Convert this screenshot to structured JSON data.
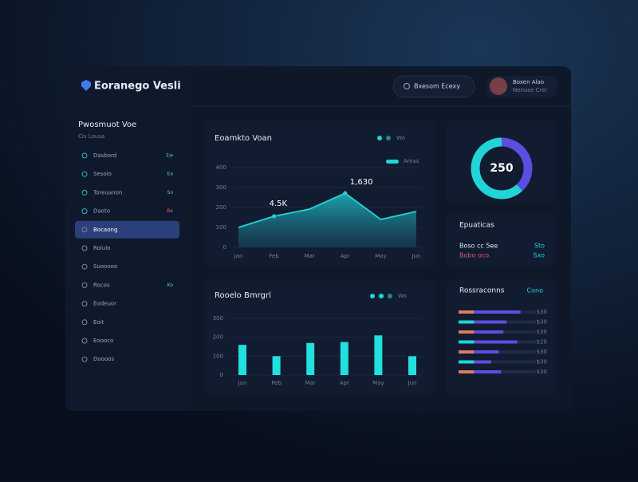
{
  "header": {
    "brand": "Eoranego Vesli",
    "search": "Bxesom Ecexy",
    "user_name": "Boxen Alao",
    "user_role": "Nenuse Crer"
  },
  "sidebar": {
    "title": "Pwosmuot Voe",
    "subtitle": "Cis Lousa",
    "active": 4,
    "items": [
      {
        "label": "Dasbord",
        "badge": "Ew"
      },
      {
        "label": "Sesolo",
        "badge": "Ea"
      },
      {
        "label": "Toreuanon",
        "badge": "So"
      },
      {
        "label": "Daoto",
        "badge": "Be"
      },
      {
        "label": "Bocaong"
      },
      {
        "label": "Rolulo"
      },
      {
        "label": "Suoooeo"
      },
      {
        "label": "Rocos",
        "badge": "Ko"
      },
      {
        "label": "Eodeuor"
      },
      {
        "label": "Eoit"
      },
      {
        "label": "Eoooco"
      },
      {
        "label": "Doooos"
      }
    ]
  },
  "line_card": {
    "title": "Eoamkto Voan",
    "toggle": "Amxs",
    "legend": "Wo",
    "chart_data": {
      "type": "line",
      "categories": [
        "Jan",
        "Feb",
        "Mar",
        "Apr",
        "May",
        "Jun"
      ],
      "values": [
        100,
        156,
        192,
        272,
        140,
        180
      ],
      "color": "#22d3d8",
      "ylim": [
        0,
        400
      ],
      "yticks": [
        0,
        100,
        200,
        300,
        400
      ],
      "annotations": [
        "4.5K",
        "1,630"
      ]
    }
  },
  "bar_card": {
    "title": "Rooelo Bmrgrl",
    "legend": "Wo",
    "chart_data": {
      "type": "bar",
      "categories": [
        "Jan",
        "Feb",
        "Mar",
        "Apr",
        "May",
        "Jun"
      ],
      "values": [
        160,
        100,
        170,
        175,
        210,
        100
      ],
      "color": "#22e0e0",
      "ylim": [
        0,
        300
      ],
      "yticks": [
        0,
        100,
        200,
        300
      ]
    }
  },
  "donut_card": {
    "center": "250",
    "chart_data": {
      "type": "pie",
      "values": [
        38,
        62
      ],
      "colors": [
        "#5b4ee0",
        "#22d3d8"
      ]
    }
  },
  "stats_card": {
    "title": "Epuaticas",
    "rows": [
      {
        "left": "Boso cc 5ee",
        "right": "Sto"
      },
      {
        "left": "Bobo oco",
        "right": "Sxo"
      }
    ]
  },
  "progress_card": {
    "title": "Rossraconns",
    "action": "Cono",
    "chart_data": {
      "type": "stacked-bar",
      "xlim": [
        0,
        100
      ],
      "rows": [
        {
          "label": "$30",
          "values": [
            20,
            60
          ],
          "colors": [
            "#e07a5f",
            "#5b4ee0"
          ]
        },
        {
          "label": "$30",
          "values": [
            20,
            42
          ],
          "colors": [
            "#22d3d8",
            "#5b4ee0"
          ]
        },
        {
          "label": "$30",
          "values": [
            20,
            38
          ],
          "colors": [
            "#e07a5f",
            "#5b4ee0"
          ]
        },
        {
          "label": "$20",
          "values": [
            20,
            56
          ],
          "colors": [
            "#22d3d8",
            "#5b4ee0"
          ]
        },
        {
          "label": "$30",
          "values": [
            20,
            32
          ],
          "colors": [
            "#e07a5f",
            "#5b4ee0"
          ]
        },
        {
          "label": "$30",
          "values": [
            20,
            22
          ],
          "colors": [
            "#22d3d8",
            "#5b4ee0"
          ]
        },
        {
          "label": "$30",
          "values": [
            20,
            35
          ],
          "colors": [
            "#e07a5f",
            "#5b4ee0"
          ]
        }
      ]
    }
  }
}
